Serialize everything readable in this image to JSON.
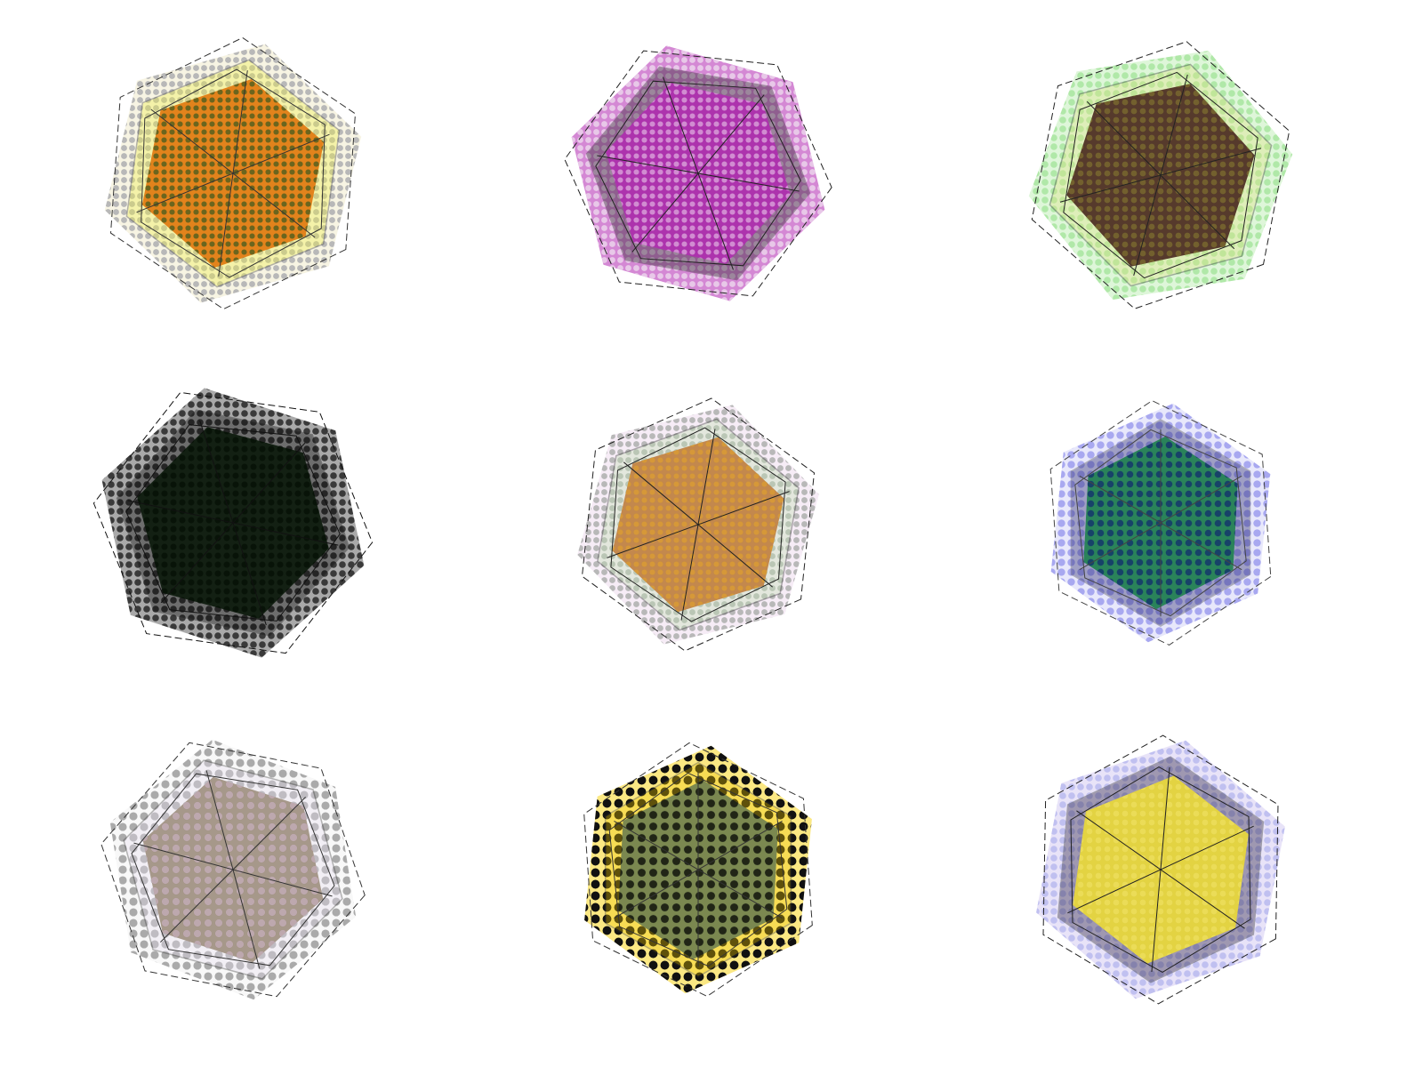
{
  "background": "#ffffff",
  "hexagons": [
    {
      "name": "hexagon-orange",
      "outer_fill": "#f2ecd0",
      "inner_fill": "#e07a10",
      "dot_color": "#b8b8b8",
      "inner_dot_color": "#3a5a20",
      "accent": "#f0f040",
      "line_color": "#333333"
    },
    {
      "name": "hexagon-magenta",
      "outer_fill": "#b838b8",
      "inner_fill": "#b030b0",
      "dot_color": "#e8c8e8",
      "inner_dot_color": "#e0b0e0",
      "accent": "#111111",
      "line_color": "#222222"
    },
    {
      "name": "hexagon-brown",
      "outer_fill": "#c8f0c0",
      "inner_fill": "#4a2a20",
      "dot_color": "#b0e8a8",
      "inner_dot_color": "#807030",
      "accent": "#e0e080",
      "line_color": "#222222"
    },
    {
      "name": "hexagon-black",
      "outer_fill": "#707070",
      "inner_fill": "#0c1a0c",
      "dot_color": "#3a3a3a",
      "inner_dot_color": "#061006",
      "accent": "#000000",
      "line_color": "#111111"
    },
    {
      "name": "hexagon-ochre",
      "outer_fill": "#f0e0f0",
      "inner_fill": "#c08040",
      "dot_color": "#b8b8b8",
      "inner_dot_color": "#e0a030",
      "accent": "#c0e0b0",
      "line_color": "#222222"
    },
    {
      "name": "hexagon-green",
      "outer_fill": "#d8d8f8",
      "inner_fill": "#208050",
      "dot_color": "#a8a8f0",
      "inner_dot_color": "#102870",
      "accent": "#1a1a60",
      "line_color": "#444444"
    },
    {
      "name": "hexagon-taupe",
      "outer_fill": "#f4f4f4",
      "inner_fill": "#a09080",
      "dot_color": "#aaaaaa",
      "inner_dot_color": "#c8b0c0",
      "accent": "#e8e0f0",
      "line_color": "#333333"
    },
    {
      "name": "hexagon-yellow",
      "outer_fill": "#f8d830",
      "inner_fill": "#708050",
      "dot_color": "#111111",
      "inner_dot_color": "#000000",
      "accent": "#f0c800",
      "line_color": "#333333"
    },
    {
      "name": "hexagon-lavender",
      "outer_fill": "#d8d0f4",
      "inner_fill": "#e8d838",
      "dot_color": "#c0c0f0",
      "inner_dot_color": "#f0e060",
      "accent": "#1a1030",
      "line_color": "#222222"
    }
  ]
}
